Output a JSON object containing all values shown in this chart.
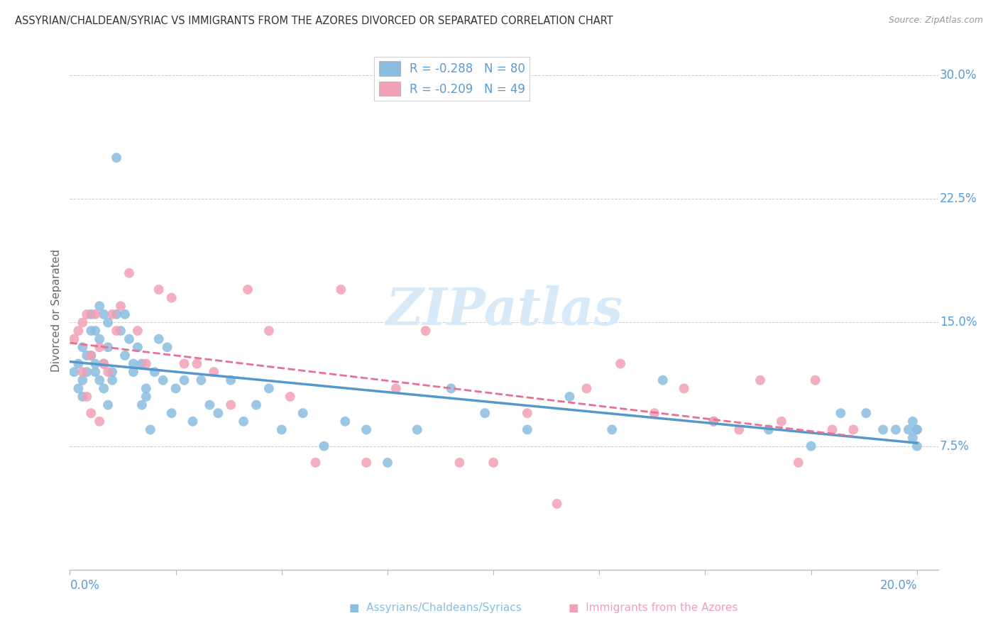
{
  "title": "ASSYRIAN/CHALDEAN/SYRIAC VS IMMIGRANTS FROM THE AZORES DIVORCED OR SEPARATED CORRELATION CHART",
  "source": "Source: ZipAtlas.com",
  "ylabel": "Divorced or Separated",
  "legend_blue_r": "R = -0.288",
  "legend_blue_n": "N = 80",
  "legend_pink_r": "R = -0.209",
  "legend_pink_n": "N = 49",
  "blue_color": "#8BBDE0",
  "pink_color": "#F2A0B5",
  "blue_line_color": "#5599CC",
  "pink_line_color": "#E87090",
  "right_ytick_vals": [
    0.075,
    0.15,
    0.225,
    0.3
  ],
  "right_ytick_labels": [
    "7.5%",
    "15.0%",
    "22.5%",
    "30.0%"
  ],
  "watermark_color": "#D8EAF8",
  "label_color": "#5B9BD5",
  "blue_x": [
    0.001,
    0.002,
    0.002,
    0.003,
    0.003,
    0.003,
    0.004,
    0.004,
    0.005,
    0.005,
    0.005,
    0.006,
    0.006,
    0.006,
    0.007,
    0.007,
    0.007,
    0.008,
    0.008,
    0.008,
    0.009,
    0.009,
    0.009,
    0.01,
    0.01,
    0.011,
    0.011,
    0.012,
    0.013,
    0.013,
    0.014,
    0.015,
    0.015,
    0.016,
    0.017,
    0.017,
    0.018,
    0.018,
    0.019,
    0.02,
    0.021,
    0.022,
    0.023,
    0.024,
    0.025,
    0.027,
    0.029,
    0.031,
    0.033,
    0.035,
    0.038,
    0.041,
    0.044,
    0.047,
    0.05,
    0.055,
    0.06,
    0.065,
    0.07,
    0.075,
    0.082,
    0.09,
    0.098,
    0.108,
    0.118,
    0.128,
    0.14,
    0.152,
    0.165,
    0.175,
    0.182,
    0.188,
    0.192,
    0.195,
    0.198,
    0.199,
    0.199,
    0.2,
    0.2,
    0.2
  ],
  "blue_y": [
    0.12,
    0.125,
    0.11,
    0.135,
    0.115,
    0.105,
    0.13,
    0.12,
    0.145,
    0.155,
    0.13,
    0.145,
    0.12,
    0.125,
    0.16,
    0.14,
    0.115,
    0.155,
    0.125,
    0.11,
    0.15,
    0.135,
    0.1,
    0.12,
    0.115,
    0.25,
    0.155,
    0.145,
    0.155,
    0.13,
    0.14,
    0.125,
    0.12,
    0.135,
    0.125,
    0.1,
    0.11,
    0.105,
    0.085,
    0.12,
    0.14,
    0.115,
    0.135,
    0.095,
    0.11,
    0.115,
    0.09,
    0.115,
    0.1,
    0.095,
    0.115,
    0.09,
    0.1,
    0.11,
    0.085,
    0.095,
    0.075,
    0.09,
    0.085,
    0.065,
    0.085,
    0.11,
    0.095,
    0.085,
    0.105,
    0.085,
    0.115,
    0.09,
    0.085,
    0.075,
    0.095,
    0.095,
    0.085,
    0.085,
    0.085,
    0.09,
    0.08,
    0.085,
    0.075,
    0.085
  ],
  "pink_x": [
    0.001,
    0.002,
    0.003,
    0.003,
    0.004,
    0.004,
    0.005,
    0.005,
    0.006,
    0.007,
    0.007,
    0.008,
    0.009,
    0.01,
    0.011,
    0.012,
    0.014,
    0.016,
    0.018,
    0.021,
    0.024,
    0.027,
    0.03,
    0.034,
    0.038,
    0.042,
    0.047,
    0.052,
    0.058,
    0.064,
    0.07,
    0.077,
    0.084,
    0.092,
    0.1,
    0.108,
    0.115,
    0.122,
    0.13,
    0.138,
    0.145,
    0.152,
    0.158,
    0.163,
    0.168,
    0.172,
    0.176,
    0.18,
    0.185
  ],
  "pink_y": [
    0.14,
    0.145,
    0.15,
    0.12,
    0.155,
    0.105,
    0.13,
    0.095,
    0.155,
    0.135,
    0.09,
    0.125,
    0.12,
    0.155,
    0.145,
    0.16,
    0.18,
    0.145,
    0.125,
    0.17,
    0.165,
    0.125,
    0.125,
    0.12,
    0.1,
    0.17,
    0.145,
    0.105,
    0.065,
    0.17,
    0.065,
    0.11,
    0.145,
    0.065,
    0.065,
    0.095,
    0.04,
    0.11,
    0.125,
    0.095,
    0.11,
    0.09,
    0.085,
    0.115,
    0.09,
    0.065,
    0.115,
    0.085,
    0.085
  ]
}
